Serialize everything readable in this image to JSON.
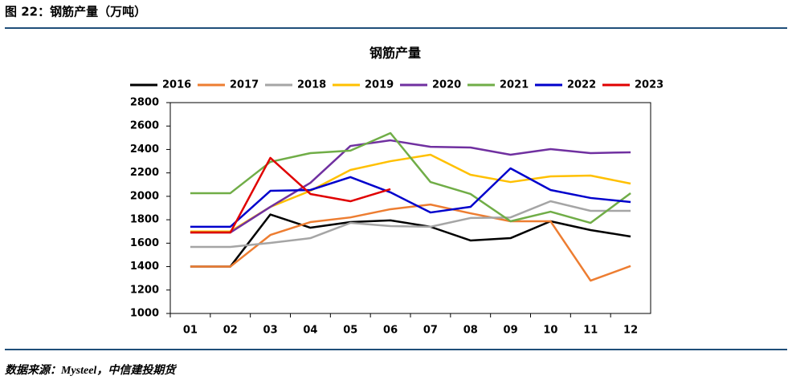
{
  "header": {
    "title": "图 22：钢筋产量（万吨）"
  },
  "chart_data": {
    "type": "line",
    "title": "钢筋产量",
    "categories": [
      "01",
      "02",
      "03",
      "04",
      "05",
      "06",
      "07",
      "08",
      "09",
      "10",
      "11",
      "12"
    ],
    "ylim": [
      1000,
      2800
    ],
    "yticks": [
      1000,
      1200,
      1400,
      1600,
      1800,
      2000,
      2200,
      2400,
      2600,
      2800
    ],
    "grid": false,
    "legend": "top",
    "series": [
      {
        "name": "2016",
        "color": "#000000",
        "values": [
          1400,
          1400,
          1845,
          1732,
          1780,
          1795,
          1740,
          1623,
          1643,
          1787,
          1712,
          1657
        ]
      },
      {
        "name": "2017",
        "color": "#ED7D31",
        "values": [
          1400,
          1400,
          1670,
          1780,
          1820,
          1890,
          1930,
          1855,
          1787,
          1787,
          1280,
          1405
        ]
      },
      {
        "name": "2018",
        "color": "#A5A5A5",
        "values": [
          1568,
          1568,
          1602,
          1643,
          1773,
          1746,
          1740,
          1815,
          1820,
          1958,
          1876,
          1876
        ]
      },
      {
        "name": "2019",
        "color": "#FFC000",
        "values": [
          1700,
          1700,
          1910,
          2047,
          2225,
          2300,
          2355,
          2184,
          2122,
          2170,
          2177,
          2109
        ]
      },
      {
        "name": "2020",
        "color": "#7030A0",
        "values": [
          1691,
          1691,
          1910,
          2115,
          2430,
          2478,
          2423,
          2417,
          2355,
          2403,
          2369,
          2376
        ]
      },
      {
        "name": "2021",
        "color": "#70AD47",
        "values": [
          2027,
          2027,
          2294,
          2369,
          2390,
          2540,
          2122,
          2020,
          1787,
          1869,
          1773,
          2027
        ]
      },
      {
        "name": "2022",
        "color": "#0000CC",
        "values": [
          1740,
          1740,
          2047,
          2054,
          2164,
          2034,
          1862,
          1910,
          2239,
          2054,
          1986,
          1951
        ]
      },
      {
        "name": "2023",
        "color": "#E00000",
        "values": [
          1691,
          1691,
          2328,
          2020,
          1958,
          2061,
          null,
          null,
          null,
          null,
          null,
          null
        ]
      }
    ]
  },
  "source": "数据来源：Mysteel，中信建投期货"
}
